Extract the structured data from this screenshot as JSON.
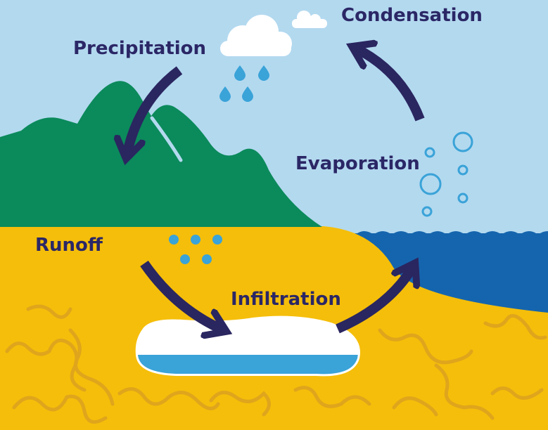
{
  "stages": [
    {
      "label": "Condensation"
    },
    {
      "label": "Precipitation"
    },
    {
      "label": "Evaporation"
    },
    {
      "label": "Runoff"
    },
    {
      "label": "Infiltration"
    }
  ]
}
